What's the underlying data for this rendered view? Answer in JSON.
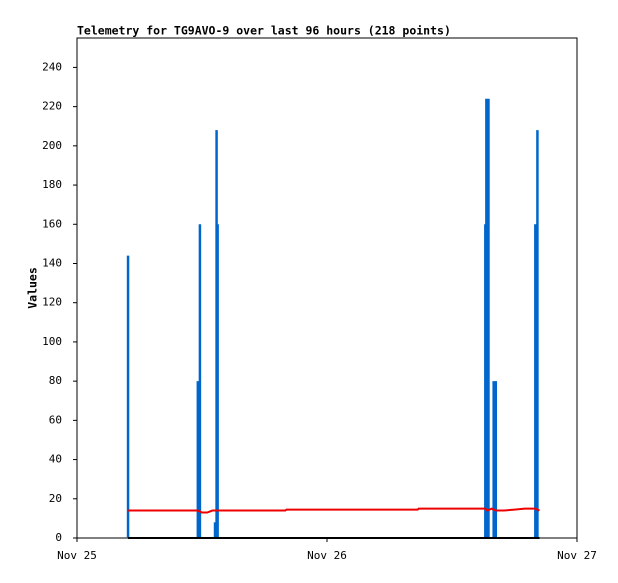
{
  "chart_data": {
    "type": "line",
    "title": "Telemetry for TG9AVO-9 over last 96 hours (218 points)",
    "y_label": "Values",
    "xlim": [
      0,
      48
    ],
    "xticks": [
      {
        "value": 0,
        "label": "Nov 25"
      },
      {
        "value": 24,
        "label": "Nov 26"
      },
      {
        "value": 48,
        "label": "Nov 27"
      }
    ],
    "ylim": [
      0,
      255
    ],
    "yticks": [
      0,
      20,
      40,
      60,
      80,
      100,
      120,
      140,
      160,
      180,
      200,
      220,
      240
    ],
    "series": [
      {
        "type": "spike",
        "color": "#0066cc",
        "x": [
          4.9,
          11.6,
          11.8,
          13.25,
          13.4,
          13.5,
          39.2,
          39.3,
          39.5,
          40.0,
          40.2,
          44.0,
          44.2
        ],
        "values": [
          144,
          80,
          160,
          8,
          208,
          160,
          160,
          224,
          224,
          80,
          80,
          160,
          208
        ]
      },
      {
        "type": "line",
        "color": "#ee0000",
        "x": [
          4.9,
          11.6,
          12.0,
          12.5,
          13.0,
          20.0,
          20.1,
          32.7,
          32.8,
          39.2,
          39.4,
          39.8,
          40.2,
          41.0,
          42.0,
          43.0,
          44.0,
          44.4
        ],
        "values": [
          14,
          14,
          13,
          13,
          14,
          14,
          14.5,
          14.5,
          15,
          15,
          14,
          15,
          14,
          14,
          14.5,
          15,
          15,
          14
        ]
      },
      {
        "type": "line",
        "color": "#000000",
        "x": [
          4.9,
          44.4
        ],
        "values": [
          0,
          0
        ]
      }
    ]
  }
}
